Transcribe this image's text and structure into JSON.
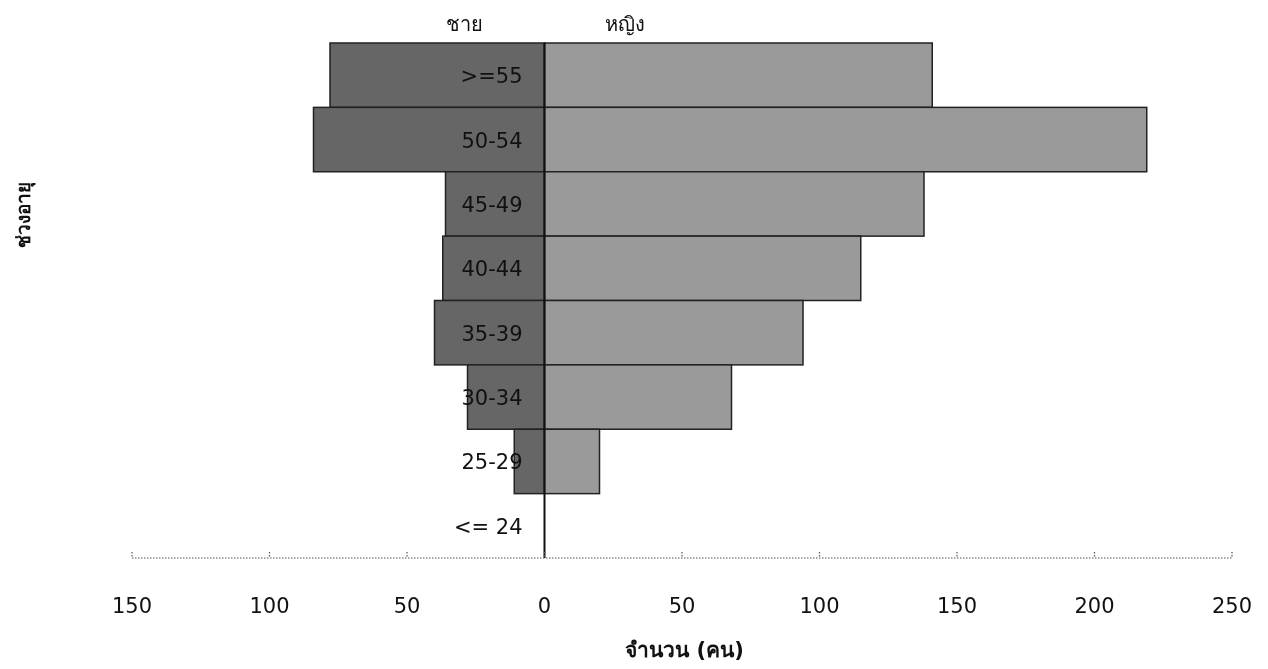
{
  "chart_data": {
    "type": "bar",
    "orientation": "horizontal",
    "stacked": true,
    "xlabel": "จำนวน (คน)",
    "ylabel": "ช่วงอายุ",
    "categories": [
      ">=55",
      "50-54",
      "45-49",
      "40-44",
      "35-39",
      "30-34",
      "25-29",
      "<= 24"
    ],
    "series": [
      {
        "name": "ชาย",
        "color": "#666666",
        "values": [
          -78,
          -84,
          -36,
          -37,
          -40,
          -28,
          -11,
          0
        ]
      },
      {
        "name": "หญิง",
        "color": "#9a9a9a",
        "values": [
          141,
          219,
          138,
          115,
          94,
          68,
          20,
          0
        ]
      }
    ],
    "xlim": [
      -150,
      250
    ],
    "xticks": [
      {
        "value": -150,
        "label": "150"
      },
      {
        "value": -100,
        "label": "100"
      },
      {
        "value": -50,
        "label": "50"
      },
      0,
      50,
      100,
      150,
      200,
      250
    ]
  }
}
